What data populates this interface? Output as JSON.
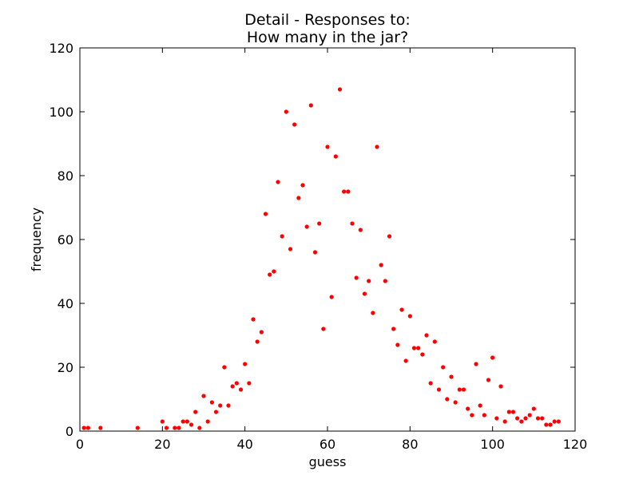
{
  "chart_data": {
    "type": "scatter",
    "title": "Detail - Responses to:",
    "subtitle": "How many in the jar?",
    "xlabel": "guess",
    "ylabel": "frequency",
    "xlim": [
      0,
      120
    ],
    "ylim": [
      0,
      120
    ],
    "xticks": [
      0,
      20,
      40,
      60,
      80,
      100,
      120
    ],
    "yticks": [
      0,
      20,
      40,
      60,
      80,
      100,
      120
    ],
    "marker_color": "#ff0000",
    "grid": false,
    "legend": "none",
    "series": [
      {
        "points": [
          [
            1,
            1
          ],
          [
            2,
            1
          ],
          [
            5,
            1
          ],
          [
            14,
            1
          ],
          [
            20,
            3
          ],
          [
            21,
            1
          ],
          [
            23,
            1
          ],
          [
            24,
            1
          ],
          [
            25,
            3
          ],
          [
            26,
            3
          ],
          [
            27,
            2
          ],
          [
            28,
            6
          ],
          [
            29,
            1
          ],
          [
            30,
            11
          ],
          [
            31,
            3
          ],
          [
            32,
            9
          ],
          [
            33,
            6
          ],
          [
            34,
            8
          ],
          [
            35,
            20
          ],
          [
            36,
            8
          ],
          [
            37,
            14
          ],
          [
            38,
            15
          ],
          [
            39,
            13
          ],
          [
            40,
            21
          ],
          [
            41,
            15
          ],
          [
            42,
            35
          ],
          [
            43,
            28
          ],
          [
            44,
            31
          ],
          [
            45,
            68
          ],
          [
            46,
            49
          ],
          [
            47,
            50
          ],
          [
            48,
            78
          ],
          [
            49,
            61
          ],
          [
            50,
            100
          ],
          [
            51,
            57
          ],
          [
            52,
            96
          ],
          [
            53,
            73
          ],
          [
            54,
            77
          ],
          [
            55,
            64
          ],
          [
            56,
            102
          ],
          [
            57,
            56
          ],
          [
            58,
            65
          ],
          [
            59,
            32
          ],
          [
            60,
            89
          ],
          [
            61,
            42
          ],
          [
            62,
            86
          ],
          [
            63,
            107
          ],
          [
            64,
            75
          ],
          [
            65,
            75
          ],
          [
            66,
            65
          ],
          [
            67,
            48
          ],
          [
            68,
            63
          ],
          [
            69,
            43
          ],
          [
            70,
            47
          ],
          [
            71,
            37
          ],
          [
            72,
            89
          ],
          [
            73,
            52
          ],
          [
            74,
            47
          ],
          [
            75,
            61
          ],
          [
            76,
            32
          ],
          [
            77,
            27
          ],
          [
            78,
            38
          ],
          [
            79,
            22
          ],
          [
            80,
            36
          ],
          [
            81,
            26
          ],
          [
            82,
            26
          ],
          [
            83,
            24
          ],
          [
            84,
            30
          ],
          [
            85,
            15
          ],
          [
            86,
            28
          ],
          [
            87,
            13
          ],
          [
            88,
            20
          ],
          [
            89,
            10
          ],
          [
            90,
            17
          ],
          [
            91,
            9
          ],
          [
            92,
            13
          ],
          [
            93,
            13
          ],
          [
            94,
            7
          ],
          [
            95,
            5
          ],
          [
            96,
            21
          ],
          [
            97,
            8
          ],
          [
            98,
            5
          ],
          [
            99,
            16
          ],
          [
            100,
            23
          ],
          [
            101,
            4
          ],
          [
            102,
            14
          ],
          [
            103,
            3
          ],
          [
            104,
            6
          ],
          [
            105,
            6
          ],
          [
            106,
            4
          ],
          [
            107,
            3
          ],
          [
            108,
            4
          ],
          [
            109,
            5
          ],
          [
            110,
            7
          ],
          [
            111,
            4
          ],
          [
            112,
            4
          ],
          [
            113,
            2
          ],
          [
            114,
            2
          ],
          [
            115,
            3
          ],
          [
            116,
            3
          ]
        ]
      }
    ]
  }
}
